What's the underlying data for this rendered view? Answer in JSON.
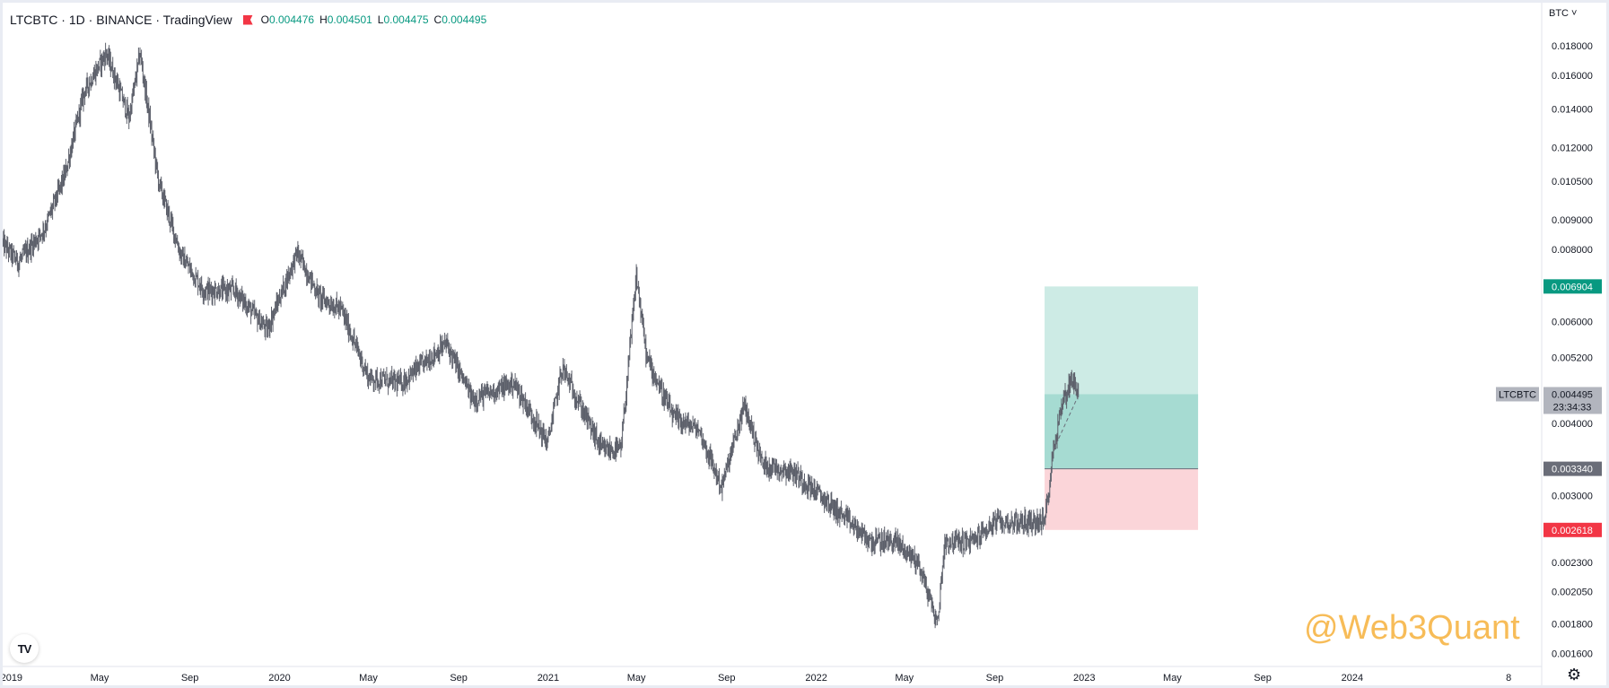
{
  "header": {
    "symbol_line": "LTCBTC · 1D · BINANCE · TradingView",
    "open_label": "O",
    "open_value": "0.004476",
    "high_label": "H",
    "high_value": "0.004501",
    "low_label": "L",
    "low_value": "0.004475",
    "close_label": "C",
    "close_value": "0.004495"
  },
  "currency_button": "BTC ˅",
  "watermark": "@Web3Quant",
  "logo_text": "TV",
  "icons": {
    "logo": "tradingview-logo-icon",
    "settings": "gear-icon",
    "flag": "flag-icon"
  },
  "colors": {
    "candle": "#5d606b",
    "profit_zone": "#cdebe5",
    "profit_zone_overlap": "#a6dbd2",
    "loss_zone": "#fbd5d9",
    "take_profit_label": "#089981",
    "stop_loss_label": "#f23645",
    "entry_label": "#6a6d78",
    "symbol_label": "#b2b5be"
  },
  "chart_data": {
    "type": "candlestick",
    "scale": "log",
    "ylim": [
      0.00152,
      0.0199
    ],
    "y_ticks": [
      "0.018000",
      "0.016000",
      "0.014000",
      "0.012000",
      "0.010500",
      "0.009000",
      "0.008000",
      "0.006000",
      "0.005200",
      "0.004000",
      "0.003000",
      "0.002300",
      "0.002050",
      "0.001800",
      "0.001600"
    ],
    "x_ticks": [
      "2019",
      "May",
      "Sep",
      "2020",
      "May",
      "Sep",
      "2021",
      "May",
      "Sep",
      "2022",
      "May",
      "Sep",
      "2023",
      "May",
      "Sep",
      "2024",
      "8"
    ],
    "x_range": [
      "2018-12-20",
      "2024-09-15"
    ],
    "x_tick_dates": [
      "2019-01-01",
      "2019-05-01",
      "2019-09-01",
      "2020-01-01",
      "2020-05-01",
      "2020-09-01",
      "2021-01-01",
      "2021-05-01",
      "2021-09-01",
      "2022-01-01",
      "2022-05-01",
      "2022-09-01",
      "2023-01-01",
      "2023-05-01",
      "2023-09-01",
      "2024-01-01",
      "2024-08-01"
    ],
    "price_path": [
      [
        "2018-12-20",
        0.0082
      ],
      [
        "2019-01-10",
        0.0076
      ],
      [
        "2019-02-15",
        0.0087
      ],
      [
        "2019-03-15",
        0.0108
      ],
      [
        "2019-04-10",
        0.015
      ],
      [
        "2019-05-10",
        0.0175
      ],
      [
        "2019-05-25",
        0.0155
      ],
      [
        "2019-06-10",
        0.0135
      ],
      [
        "2019-06-25",
        0.0175
      ],
      [
        "2019-07-20",
        0.0105
      ],
      [
        "2019-08-20",
        0.0078
      ],
      [
        "2019-09-20",
        0.0068
      ],
      [
        "2019-11-01",
        0.0068
      ],
      [
        "2019-12-15",
        0.0058
      ],
      [
        "2020-01-25",
        0.0079
      ],
      [
        "2020-02-25",
        0.0066
      ],
      [
        "2020-03-25",
        0.0063
      ],
      [
        "2020-05-01",
        0.0048
      ],
      [
        "2020-06-15",
        0.0047
      ],
      [
        "2020-08-15",
        0.0055
      ],
      [
        "2020-09-20",
        0.0044
      ],
      [
        "2020-11-15",
        0.0047
      ],
      [
        "2020-12-31",
        0.0037
      ],
      [
        "2021-01-20",
        0.005
      ],
      [
        "2021-03-15",
        0.0036
      ],
      [
        "2021-04-10",
        0.0036
      ],
      [
        "2021-05-01",
        0.0072
      ],
      [
        "2021-05-15",
        0.0052
      ],
      [
        "2021-06-20",
        0.0041
      ],
      [
        "2021-07-25",
        0.0039
      ],
      [
        "2021-08-25",
        0.0031
      ],
      [
        "2021-09-25",
        0.0043
      ],
      [
        "2021-10-20",
        0.0034
      ],
      [
        "2021-12-01",
        0.0033
      ],
      [
        "2022-01-20",
        0.0029
      ],
      [
        "2022-03-15",
        0.0025
      ],
      [
        "2022-04-20",
        0.0025
      ],
      [
        "2022-05-20",
        0.0023
      ],
      [
        "2022-06-15",
        0.0018
      ],
      [
        "2022-06-25",
        0.0025
      ],
      [
        "2022-08-01",
        0.0025
      ],
      [
        "2022-09-01",
        0.0027
      ],
      [
        "2022-10-01",
        0.0027
      ],
      [
        "2022-11-08",
        0.0027
      ],
      [
        "2022-11-20",
        0.0036
      ],
      [
        "2022-12-01",
        0.0043
      ],
      [
        "2022-12-15",
        0.0048
      ],
      [
        "2022-12-25",
        0.0045
      ]
    ],
    "position": {
      "type": "long",
      "start": "2022-11-08",
      "end": "2023-06-05",
      "entry": 0.00334,
      "take_profit": 0.006904,
      "stop_loss": 0.002618
    },
    "labels": {
      "take_profit": "0.006904",
      "entry": "0.003340",
      "stop_loss": "0.002618",
      "symbol": "LTCBTC",
      "last_price": "0.004495",
      "countdown": "23:34:33"
    },
    "last_price": 0.004495
  }
}
